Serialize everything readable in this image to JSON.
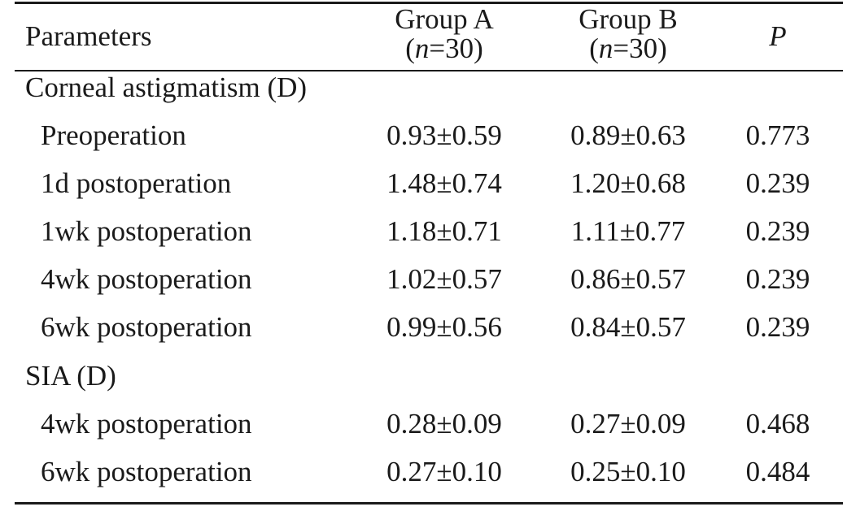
{
  "header": {
    "parameters": "Parameters",
    "group_a": {
      "name": "Group A",
      "n_var": "n",
      "n_value": "=30"
    },
    "group_b": {
      "name": "Group B",
      "n_var": "n",
      "n_value": "=30"
    },
    "p": "P"
  },
  "sections": [
    {
      "title": "Corneal astigmatism (D)",
      "rows": [
        {
          "label": "Preoperation",
          "group_a": "0.93±0.59",
          "group_b": "0.89±0.63",
          "p": "0.773"
        },
        {
          "label": "1d postoperation",
          "group_a": "1.48±0.74",
          "group_b": "1.20±0.68",
          "p": "0.239"
        },
        {
          "label": "1wk postoperation",
          "group_a": "1.18±0.71",
          "group_b": "1.11±0.77",
          "p": "0.239"
        },
        {
          "label": "4wk postoperation",
          "group_a": "1.02±0.57",
          "group_b": "0.86±0.57",
          "p": "0.239"
        },
        {
          "label": "6wk postoperation",
          "group_a": "0.99±0.56",
          "group_b": "0.84±0.57",
          "p": "0.239"
        }
      ]
    },
    {
      "title": "SIA (D)",
      "rows": [
        {
          "label": "4wk postoperation",
          "group_a": "0.28±0.09",
          "group_b": "0.27±0.09",
          "p": "0.468"
        },
        {
          "label": "6wk postoperation",
          "group_a": "0.27±0.10",
          "group_b": "0.25±0.10",
          "p": "0.484"
        }
      ]
    }
  ]
}
